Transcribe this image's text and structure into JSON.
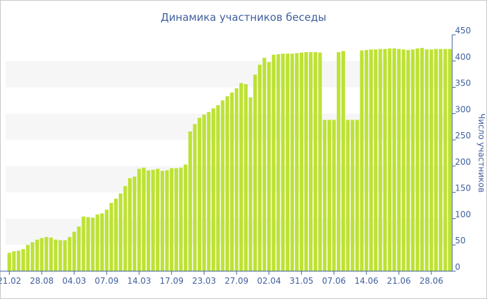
{
  "chart_data": {
    "type": "bar",
    "title": "Динамика участников беседы",
    "xlabel": "",
    "ylabel": "Число участников",
    "ylim": [
      0,
      450
    ],
    "y_ticks": [
      0,
      50,
      100,
      150,
      200,
      250,
      300,
      350,
      400,
      450
    ],
    "grid": "alternating horizontal bands",
    "bar_color": "#bde234",
    "x_tick_labels": [
      "21.02",
      "28.08",
      "04.03",
      "07.09",
      "14.03",
      "17.09",
      "23.03",
      "27.09",
      "02.04",
      "31.05",
      "07.06",
      "14.06",
      "21.06",
      "28.06"
    ],
    "values": [
      35,
      38,
      39,
      42,
      50,
      55,
      60,
      63,
      65,
      64,
      60,
      59,
      59,
      65,
      75,
      85,
      104,
      103,
      102,
      108,
      110,
      117,
      130,
      138,
      148,
      162,
      177,
      180,
      195,
      197,
      192,
      193,
      195,
      191,
      192,
      196,
      196,
      197,
      203,
      266,
      280,
      292,
      298,
      303,
      310,
      316,
      325,
      333,
      340,
      348,
      358,
      356,
      331,
      374,
      393,
      406,
      398,
      412,
      413,
      414,
      414,
      414,
      415,
      416,
      417,
      417,
      417,
      416,
      288,
      288,
      288,
      417,
      419,
      288,
      288,
      288,
      420,
      421,
      422,
      422,
      423,
      423,
      424,
      424,
      423,
      422,
      421,
      422,
      424,
      425,
      422,
      422,
      423,
      423,
      423,
      423
    ]
  }
}
